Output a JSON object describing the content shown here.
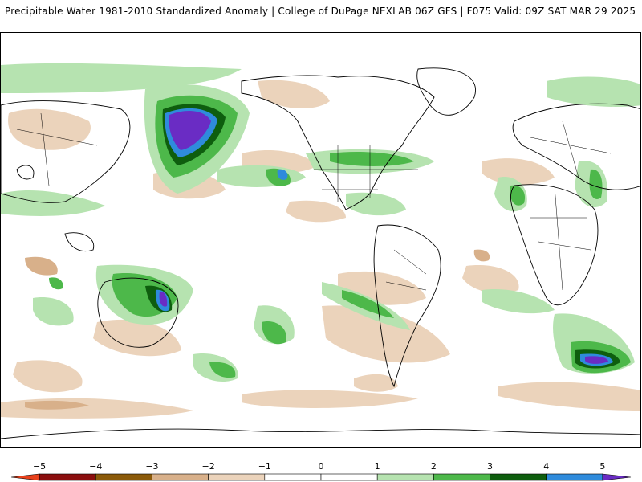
{
  "title": "Precipitable Water 1981-2010 Standardized Anomaly | College of DuPage NEXLAB  06Z GFS | F075 Valid: 09Z SAT MAR 29 2025",
  "colors": {
    "ocean": "#ffffff",
    "border": "#000000",
    "coast": "#000000"
  },
  "map": {
    "projection": "equirectangular",
    "center": "Pacific-centered (dateline near middle)"
  },
  "legend": {
    "ticks": [
      "-5",
      "-4",
      "-3",
      "-2",
      "-1",
      "0",
      "1",
      "2",
      "3",
      "4",
      "5"
    ],
    "bins": [
      {
        "from": -5.5,
        "to": -5,
        "color": "#e8401b"
      },
      {
        "from": -5,
        "to": -4,
        "color": "#8b0e0e"
      },
      {
        "from": -4,
        "to": -3,
        "color": "#8b5a0a"
      },
      {
        "from": -3,
        "to": -2,
        "color": "#d8b08a"
      },
      {
        "from": -2,
        "to": -1,
        "color": "#ebd3bb"
      },
      {
        "from": -1,
        "to": 0,
        "color": "#ffffff"
      },
      {
        "from": 0,
        "to": 1,
        "color": "#ffffff"
      },
      {
        "from": 1,
        "to": 2,
        "color": "#b6e3b0"
      },
      {
        "from": 2,
        "to": 3,
        "color": "#4db84a"
      },
      {
        "from": 3,
        "to": 4,
        "color": "#0e5e0e"
      },
      {
        "from": 4,
        "to": 5,
        "color": "#2f8bdc"
      },
      {
        "from": 5,
        "to": 5.5,
        "color": "#6a2cc4"
      }
    ]
  }
}
